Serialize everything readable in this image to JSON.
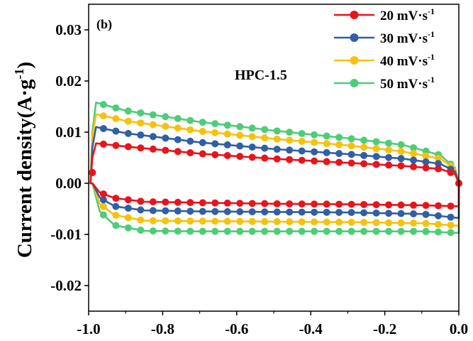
{
  "chart_data": {
    "type": "line",
    "panel_label": "(b)",
    "annotation": "HPC-1.5",
    "xlabel": "",
    "ylabel": "Current density(A·g",
    "ylabel_superscript": "-1",
    "ylabel_suffix": ")",
    "xlim": [
      -1.0,
      0.0
    ],
    "ylim": [
      -0.025,
      0.035
    ],
    "x_ticks": [
      -1.0,
      -0.8,
      -0.6,
      -0.4,
      -0.2,
      0.0
    ],
    "x_tick_labels": [
      "-1.0",
      "-0.8",
      "-0.6",
      "-0.4",
      "-0.2",
      "0.0"
    ],
    "y_ticks": [
      -0.02,
      -0.01,
      0.0,
      0.01,
      0.02,
      0.03
    ],
    "y_tick_labels": [
      "-0.02",
      "-0.01",
      "0.00",
      "0.01",
      "0.02",
      "0.03"
    ],
    "grid": false,
    "legend_position": "top-right",
    "series": [
      {
        "name": "20 mV·s",
        "name_superscript": "-1",
        "color": "#e8141c",
        "upper_curve": [
          [
            -0.995,
            0.0
          ],
          [
            -0.99,
            0.005
          ],
          [
            -0.98,
            0.0078
          ],
          [
            -0.9,
            0.0072
          ],
          [
            -0.7,
            0.0058
          ],
          [
            -0.5,
            0.0048
          ],
          [
            -0.3,
            0.004
          ],
          [
            -0.15,
            0.0034
          ],
          [
            -0.05,
            0.0028
          ],
          [
            -0.01,
            0.0018
          ],
          [
            0.0,
            0.0
          ]
        ],
        "lower_curve": [
          [
            0.0,
            0.0
          ],
          [
            0.0,
            -0.0045
          ],
          [
            -0.1,
            -0.0043
          ],
          [
            -0.3,
            -0.0041
          ],
          [
            -0.5,
            -0.004
          ],
          [
            -0.7,
            -0.0038
          ],
          [
            -0.85,
            -0.0036
          ],
          [
            -0.93,
            -0.0029
          ],
          [
            -0.97,
            -0.0018
          ],
          [
            -0.99,
            0.0
          ]
        ]
      },
      {
        "name": "30 mV·s",
        "name_superscript": "-1",
        "color": "#2f60a5",
        "upper_curve": [
          [
            -0.995,
            0.0
          ],
          [
            -0.99,
            0.007
          ],
          [
            -0.98,
            0.011
          ],
          [
            -0.9,
            0.0098
          ],
          [
            -0.7,
            0.008
          ],
          [
            -0.5,
            0.0067
          ],
          [
            -0.3,
            0.0057
          ],
          [
            -0.15,
            0.0048
          ],
          [
            -0.05,
            0.0038
          ],
          [
            -0.01,
            0.0023
          ],
          [
            0.0,
            0.0
          ]
        ],
        "lower_curve": [
          [
            0.0,
            0.0
          ],
          [
            0.0,
            -0.0068
          ],
          [
            -0.1,
            -0.006
          ],
          [
            -0.3,
            -0.0057
          ],
          [
            -0.5,
            -0.0056
          ],
          [
            -0.7,
            -0.0055
          ],
          [
            -0.85,
            -0.0053
          ],
          [
            -0.93,
            -0.0045
          ],
          [
            -0.97,
            -0.0028
          ],
          [
            -0.99,
            0.0
          ]
        ]
      },
      {
        "name": "40 mV·s",
        "name_superscript": "-1",
        "color": "#f8c10d",
        "upper_curve": [
          [
            -0.995,
            0.0
          ],
          [
            -0.99,
            0.009
          ],
          [
            -0.98,
            0.0135
          ],
          [
            -0.9,
            0.0122
          ],
          [
            -0.7,
            0.0102
          ],
          [
            -0.5,
            0.0087
          ],
          [
            -0.3,
            0.0074
          ],
          [
            -0.15,
            0.0062
          ],
          [
            -0.05,
            0.0048
          ],
          [
            -0.01,
            0.0028
          ],
          [
            0.0,
            0.0
          ]
        ],
        "lower_curve": [
          [
            0.0,
            0.0
          ],
          [
            0.0,
            -0.0083
          ],
          [
            -0.1,
            -0.0078
          ],
          [
            -0.3,
            -0.0076
          ],
          [
            -0.5,
            -0.0075
          ],
          [
            -0.7,
            -0.0074
          ],
          [
            -0.85,
            -0.0073
          ],
          [
            -0.93,
            -0.0062
          ],
          [
            -0.97,
            -0.004
          ],
          [
            -0.99,
            0.0
          ]
        ]
      },
      {
        "name": "50 mV·s",
        "name_superscript": "-1",
        "color": "#4dcd78",
        "upper_curve": [
          [
            -0.995,
            0.0
          ],
          [
            -0.99,
            0.01
          ],
          [
            -0.98,
            0.0158
          ],
          [
            -0.9,
            0.0142
          ],
          [
            -0.7,
            0.012
          ],
          [
            -0.5,
            0.0103
          ],
          [
            -0.3,
            0.0088
          ],
          [
            -0.15,
            0.0075
          ],
          [
            -0.05,
            0.0055
          ],
          [
            -0.01,
            0.003
          ],
          [
            0.0,
            0.0
          ]
        ],
        "lower_curve": [
          [
            0.0,
            0.0
          ],
          [
            0.0,
            -0.0097
          ],
          [
            -0.1,
            -0.0094
          ],
          [
            -0.3,
            -0.0094
          ],
          [
            -0.5,
            -0.0094
          ],
          [
            -0.7,
            -0.0094
          ],
          [
            -0.85,
            -0.0093
          ],
          [
            -0.93,
            -0.0082
          ],
          [
            -0.97,
            -0.0055
          ],
          [
            -0.99,
            0.0
          ]
        ]
      }
    ]
  }
}
